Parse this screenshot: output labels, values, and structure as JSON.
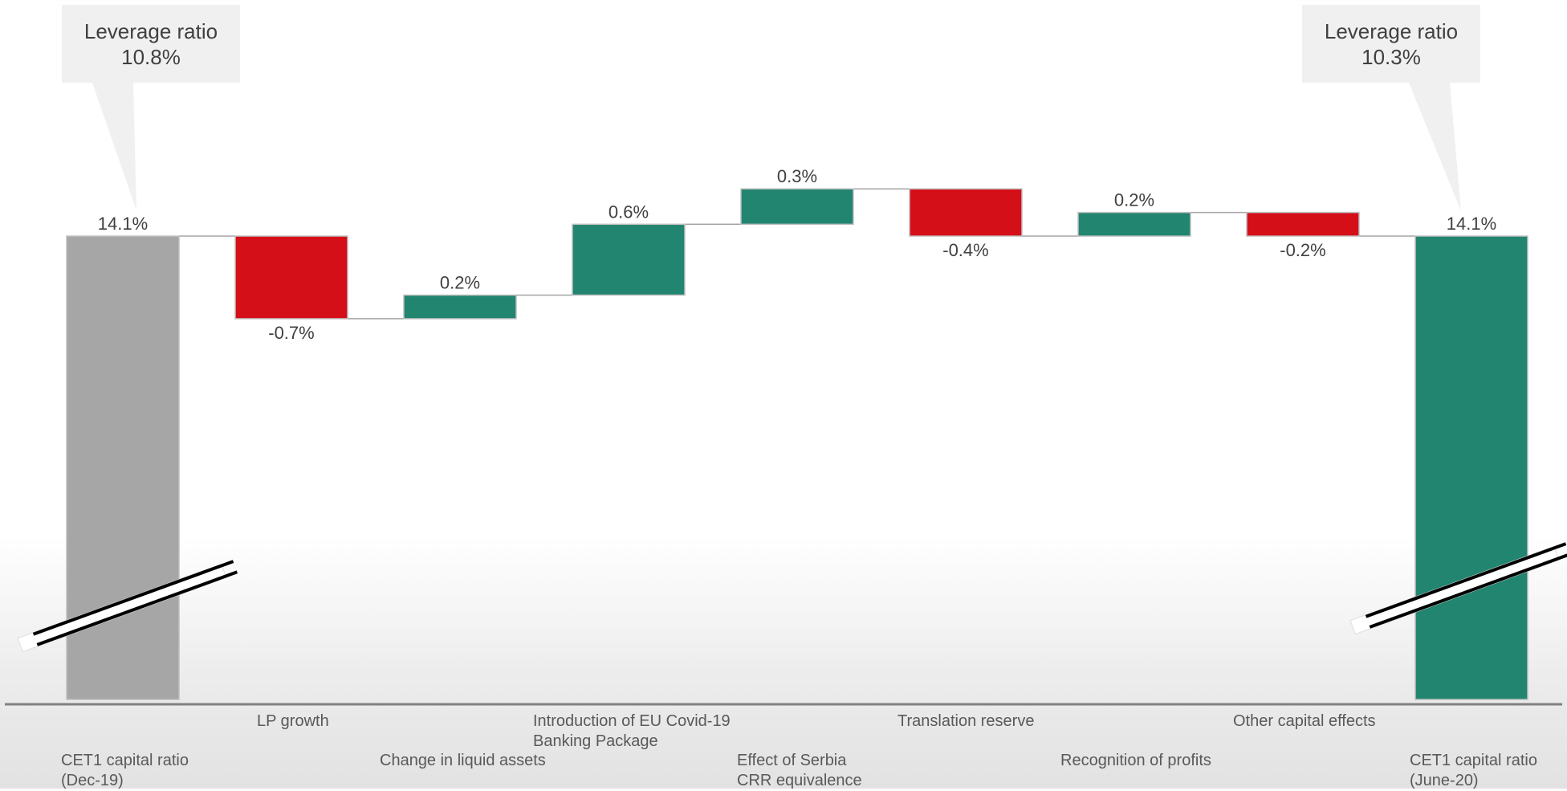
{
  "callouts": {
    "left": {
      "title": "Leverage ratio",
      "value": "10.8%"
    },
    "right": {
      "title": "Leverage ratio",
      "value": "10.3%"
    }
  },
  "categories": {
    "start": "CET1 capital ratio\n(Dec-19)",
    "lp_growth": "LP growth",
    "liquid_assets": "Change in liquid assets",
    "eu_covid": "Introduction of EU Covid-19\nBanking Package",
    "serbia": "Effect of Serbia\nCRR equivalence",
    "translation": "Translation  reserve",
    "profits": "Recognition of profits",
    "other": "Other capital effects",
    "end": "CET1 capital ratio\n(June-20)"
  },
  "colors": {
    "start_bar": "#a6a6a6",
    "increase": "#228570",
    "decrease": "#d50f18",
    "end_bar": "#228570",
    "label_text": "#404040",
    "axis": "#808080"
  },
  "chart_data": {
    "type": "bar",
    "subtype": "waterfall",
    "categories": [
      "CET1 capital ratio (Dec-19)",
      "LP growth",
      "Change in liquid assets",
      "Introduction of EU Covid-19 Banking Package",
      "Effect of Serbia CRR equivalence",
      "Translation  reserve",
      "Recognition of profits",
      "Other capital effects",
      "CET1 capital ratio (June-20)"
    ],
    "values": [
      14.1,
      -0.7,
      0.2,
      0.6,
      0.3,
      -0.4,
      0.2,
      -0.2,
      14.1
    ],
    "kinds": [
      "total",
      "delta",
      "delta",
      "delta",
      "delta",
      "delta",
      "delta",
      "delta",
      "total"
    ],
    "data_labels": [
      "14.1%",
      "-0.7%",
      "0.2%",
      "0.6%",
      "0.3%",
      "-0.4%",
      "0.2%",
      "-0.2%",
      "14.1%"
    ],
    "axis_break": true,
    "grid": false,
    "legend": "none",
    "xlabel": "",
    "ylabel": ""
  }
}
